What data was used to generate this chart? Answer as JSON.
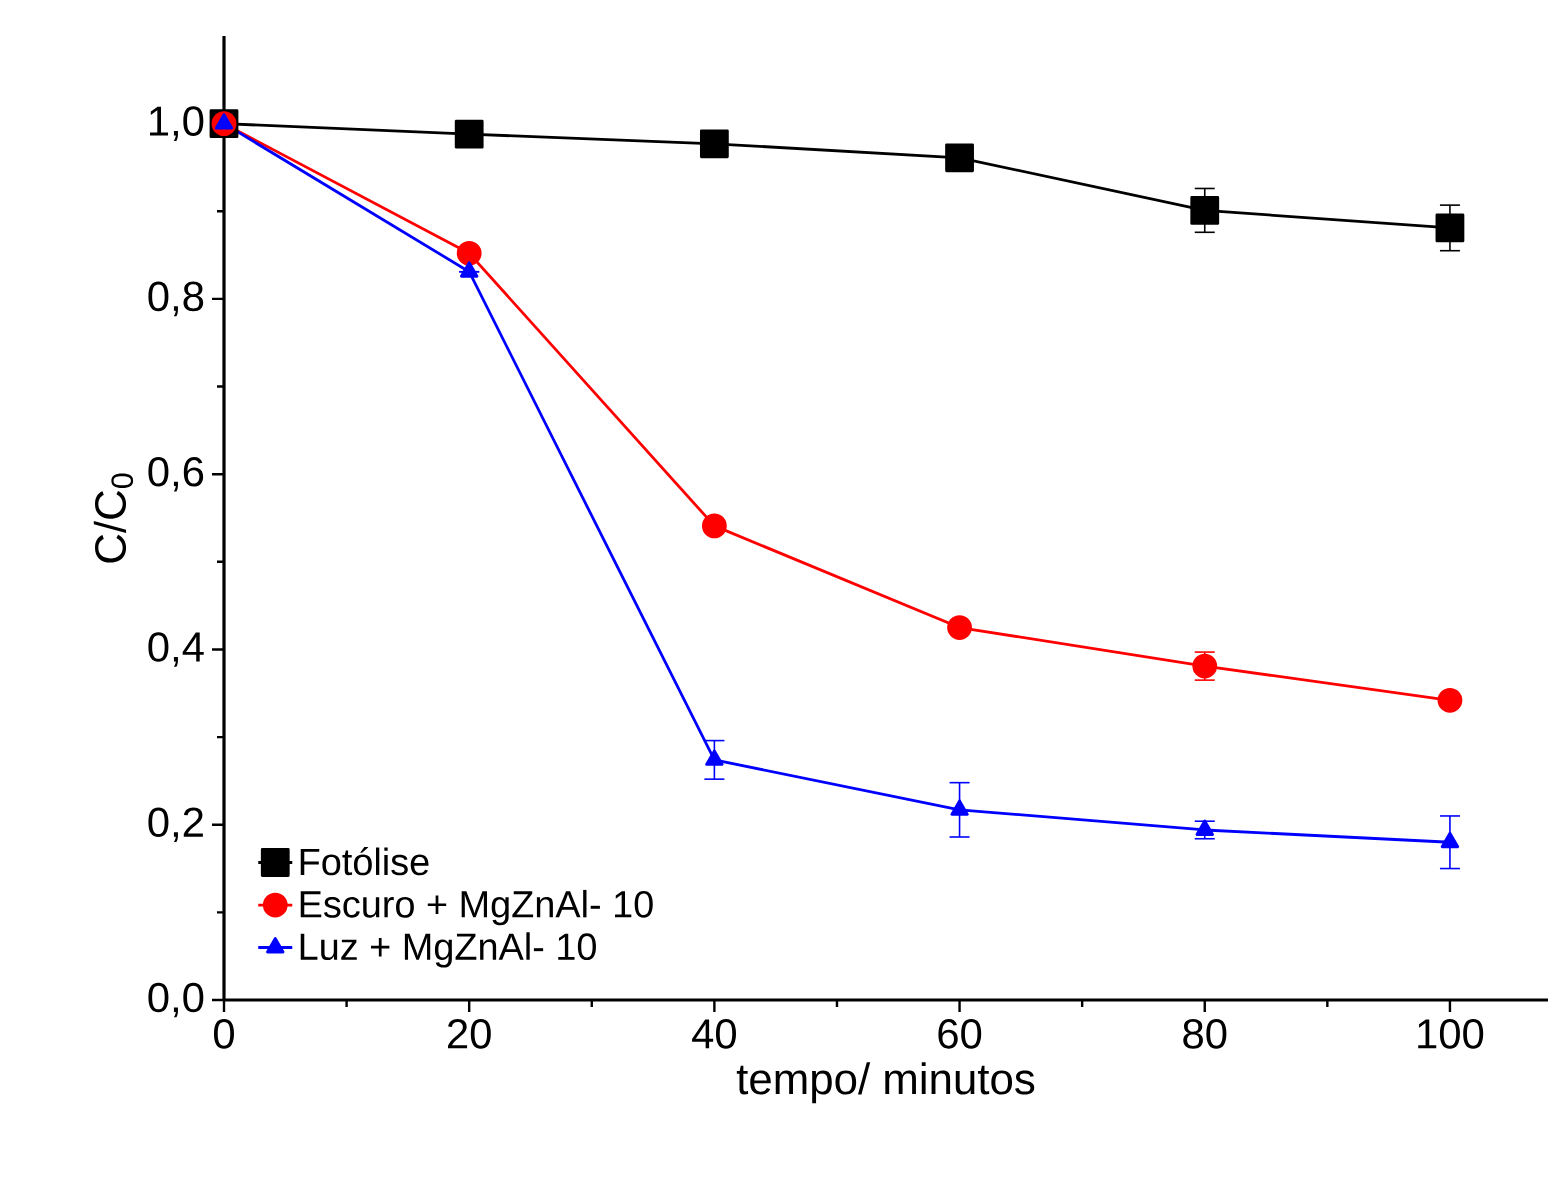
{
  "chart_data": {
    "type": "line",
    "xlabel": "tempo/ minutos",
    "ylabel": "C/C$_{0}$",
    "x": [
      0,
      20,
      40,
      60,
      80,
      100
    ],
    "xlim": [
      0,
      108
    ],
    "ylim": [
      0,
      1.1
    ],
    "xticks": [
      0,
      20,
      40,
      60,
      80,
      100
    ],
    "yticks": [
      {
        "value": 0,
        "label": "0,0"
      },
      {
        "value": 0.2,
        "label": "0,2"
      },
      {
        "value": 0.4,
        "label": "0,4"
      },
      {
        "value": 0.6,
        "label": "0,6"
      },
      {
        "value": 0.8,
        "label": "0,8"
      },
      {
        "value": 1.0,
        "label": "1,0"
      }
    ],
    "grid": false,
    "legend": "bottom left",
    "line_style": "solid",
    "series": [
      {
        "name": "Fotólise",
        "color": "#000000",
        "marker": "square",
        "values": [
          1.0,
          0.988,
          0.977,
          0.961,
          0.901,
          0.881
        ],
        "errors": [
          null,
          0.005,
          0.01,
          0.005,
          0.025,
          0.026
        ]
      },
      {
        "name": "Escuro + MgZnAl- 10",
        "color": "#ff0000",
        "marker": "circle",
        "values": [
          1.0,
          0.852,
          0.541,
          0.425,
          0.381,
          0.342
        ],
        "errors": [
          null,
          null,
          null,
          null,
          0.016,
          null
        ]
      },
      {
        "name": "Luz + MgZnAl- 10",
        "color": "#0000ff",
        "marker": "triangle",
        "values": [
          1.0,
          0.831,
          0.274,
          0.217,
          0.194,
          0.18
        ],
        "errors": [
          null,
          null,
          0.022,
          0.031,
          0.01,
          0.03
        ]
      }
    ]
  }
}
